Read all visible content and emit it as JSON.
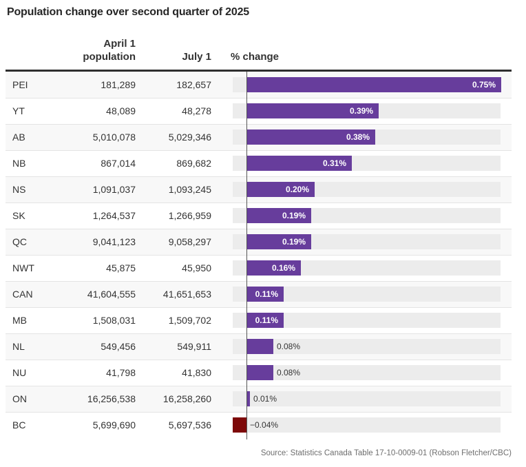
{
  "title": "Population change over second quarter of 2025",
  "header": {
    "april_line1": "April 1",
    "april_line2": "population",
    "july": "July 1",
    "change": "% change"
  },
  "source": "Source: Statistics Canada Table 17-10-0009-01 (Robson Fletcher/CBC)",
  "chart_data": {
    "type": "bar",
    "orientation": "horizontal",
    "title": "Population change over second quarter of 2025",
    "xlabel": "% change",
    "xlim": [
      -0.04,
      0.79
    ],
    "grid": false,
    "legend": false,
    "colors": {
      "positive_bar": "#673d9c",
      "negative_bar": "#7d0909",
      "bar_track": "#ececec",
      "row_stripe": "#f8f8f8",
      "zero_line": "#555555"
    },
    "categories": [
      "PEI",
      "YT",
      "AB",
      "NB",
      "NS",
      "SK",
      "QC",
      "NWT",
      "CAN",
      "MB",
      "NL",
      "NU",
      "ON",
      "BC"
    ],
    "rows": [
      {
        "region": "PEI",
        "april_1_population": "181,289",
        "july_1": "182,657",
        "pct_change": 0.75,
        "pct_change_label": "0.75%"
      },
      {
        "region": "YT",
        "april_1_population": "48,089",
        "july_1": "48,278",
        "pct_change": 0.39,
        "pct_change_label": "0.39%"
      },
      {
        "region": "AB",
        "april_1_population": "5,010,078",
        "july_1": "5,029,346",
        "pct_change": 0.38,
        "pct_change_label": "0.38%"
      },
      {
        "region": "NB",
        "april_1_population": "867,014",
        "july_1": "869,682",
        "pct_change": 0.31,
        "pct_change_label": "0.31%"
      },
      {
        "region": "NS",
        "april_1_population": "1,091,037",
        "july_1": "1,093,245",
        "pct_change": 0.2,
        "pct_change_label": "0.20%"
      },
      {
        "region": "SK",
        "april_1_population": "1,264,537",
        "july_1": "1,266,959",
        "pct_change": 0.19,
        "pct_change_label": "0.19%"
      },
      {
        "region": "QC",
        "april_1_population": "9,041,123",
        "july_1": "9,058,297",
        "pct_change": 0.19,
        "pct_change_label": "0.19%"
      },
      {
        "region": "NWT",
        "april_1_population": "45,875",
        "july_1": "45,950",
        "pct_change": 0.16,
        "pct_change_label": "0.16%"
      },
      {
        "region": "CAN",
        "april_1_population": "41,604,555",
        "july_1": "41,651,653",
        "pct_change": 0.11,
        "pct_change_label": "0.11%"
      },
      {
        "region": "MB",
        "april_1_population": "1,508,031",
        "july_1": "1,509,702",
        "pct_change": 0.11,
        "pct_change_label": "0.11%"
      },
      {
        "region": "NL",
        "april_1_population": "549,456",
        "july_1": "549,911",
        "pct_change": 0.08,
        "pct_change_label": "0.08%"
      },
      {
        "region": "NU",
        "april_1_population": "41,798",
        "july_1": "41,830",
        "pct_change": 0.08,
        "pct_change_label": "0.08%"
      },
      {
        "region": "ON",
        "april_1_population": "16,256,538",
        "july_1": "16,258,260",
        "pct_change": 0.01,
        "pct_change_label": "0.01%"
      },
      {
        "region": "BC",
        "april_1_population": "5,699,690",
        "july_1": "5,697,536",
        "pct_change": -0.04,
        "pct_change_label": "−0.04%"
      }
    ]
  }
}
